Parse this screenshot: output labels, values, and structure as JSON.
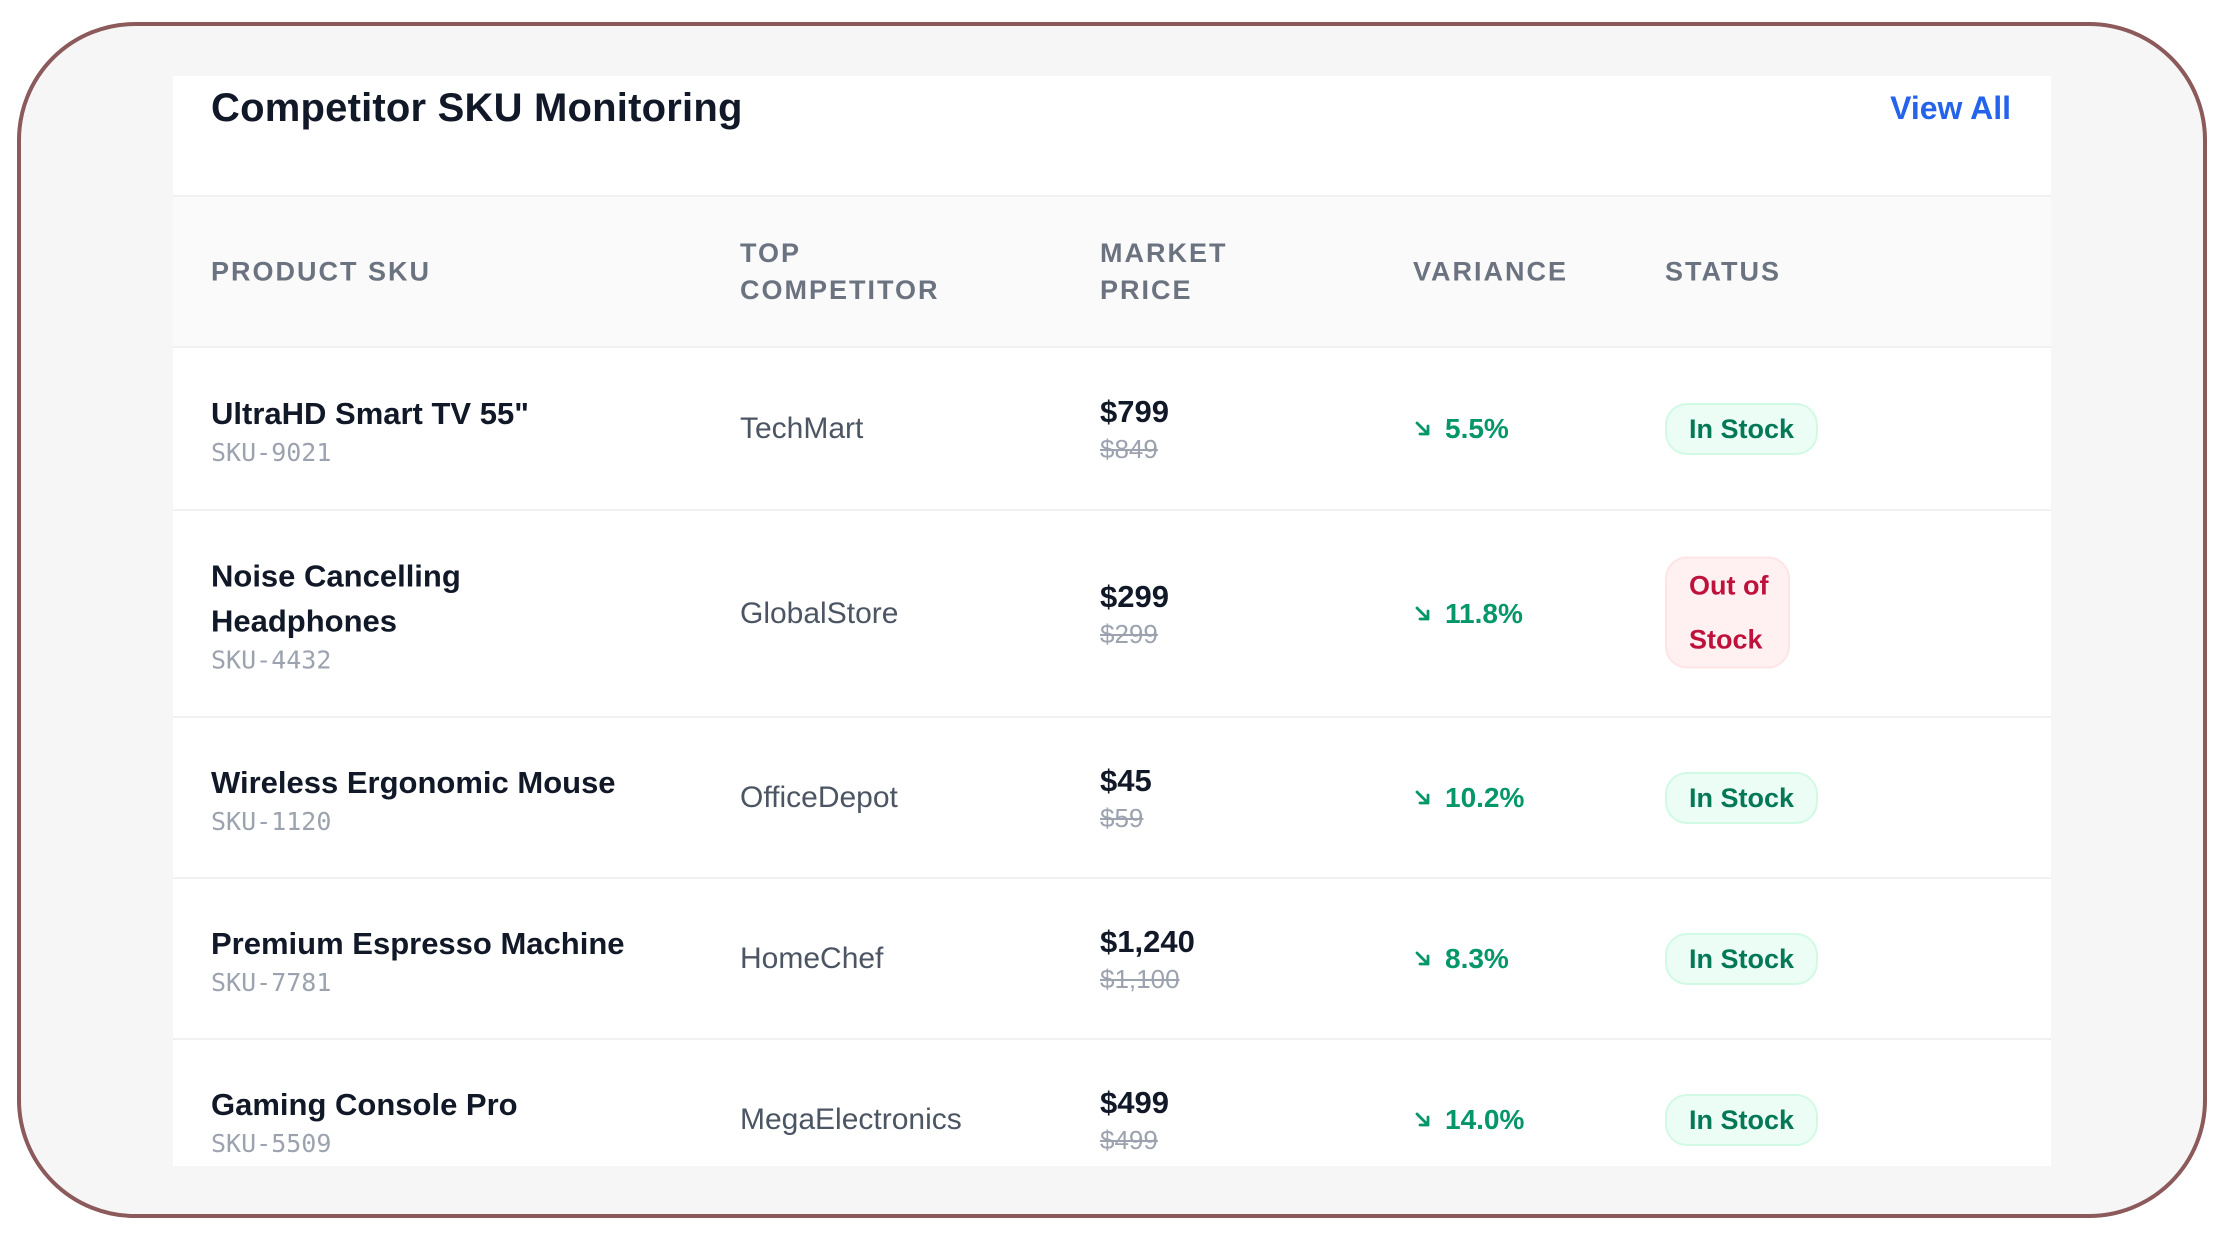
{
  "header": {
    "title": "Competitor SKU Monitoring",
    "view_all_label": "View All"
  },
  "columns": [
    "PRODUCT SKU",
    "TOP COMPETITOR",
    "MARKET PRICE",
    "VARIANCE",
    "STATUS"
  ],
  "rows": [
    {
      "name": "UltraHD Smart TV 55\"",
      "sku": "SKU-9021",
      "competitor": "TechMart",
      "price": "$799",
      "old_price": "$849",
      "variance": "5.5%",
      "status": "In Stock"
    },
    {
      "name": "Noise Cancelling Headphones",
      "sku": "SKU-4432",
      "competitor": "GlobalStore",
      "price": "$299",
      "old_price": "$299",
      "variance": "11.8%",
      "status": "Out of Stock"
    },
    {
      "name": "Wireless Ergonomic Mouse",
      "sku": "SKU-1120",
      "competitor": "OfficeDepot",
      "price": "$45",
      "old_price": "$59",
      "variance": "10.2%",
      "status": "In Stock"
    },
    {
      "name": "Premium Espresso Machine",
      "sku": "SKU-7781",
      "competitor": "HomeChef",
      "price": "$1,240",
      "old_price": "$1,100",
      "variance": "8.3%",
      "status": "In Stock"
    },
    {
      "name": "Gaming Console Pro",
      "sku": "SKU-5509",
      "competitor": "MegaElectronics",
      "price": "$499",
      "old_price": "$499",
      "variance": "14.0%",
      "status": "In Stock"
    }
  ],
  "icons": {
    "variance": "arrow-down-right-icon"
  },
  "colors": {
    "accent": "#2563eb",
    "positive": "#059669",
    "in_stock_bg": "#ecfdf5",
    "in_stock_text": "#047857",
    "out_of_stock_bg": "#fff1f2",
    "out_of_stock_text": "#be123c",
    "frame_border": "#8c5a5a"
  }
}
